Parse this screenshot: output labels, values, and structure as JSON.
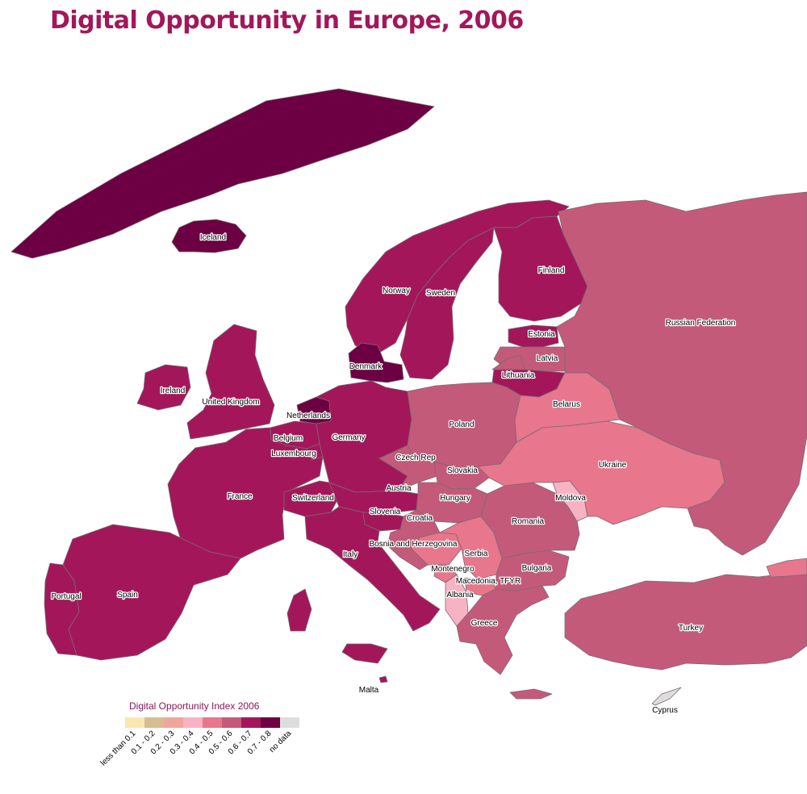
{
  "title": "Digital Opportunity in Europe, 2006",
  "legend": {
    "title": "Digital Opportunity Index 2006",
    "classes": [
      {
        "label": "less than 0.1",
        "color": "#fce7b2"
      },
      {
        "label": "0.1 - 0.2",
        "color": "#d7bd93"
      },
      {
        "label": "0.2 - 0.3",
        "color": "#f0a79b"
      },
      {
        "label": "0.3 - 0.4",
        "color": "#f7b3c3"
      },
      {
        "label": "0.4 - 0.5",
        "color": "#e8768c"
      },
      {
        "label": "0.5 - 0.6",
        "color": "#c45a79"
      },
      {
        "label": "0.6 - 0.7",
        "color": "#a3175a"
      },
      {
        "label": "0.7 - 0.8",
        "color": "#6c0042"
      },
      {
        "label": "no data",
        "color": "#dddddd"
      }
    ]
  },
  "countries": [
    {
      "name": "Greenland",
      "label": "",
      "class": "0.7 - 0.8"
    },
    {
      "name": "Iceland",
      "label": "Iceland",
      "class": "0.7 - 0.8"
    },
    {
      "name": "Norway",
      "label": "Norway",
      "class": "0.6 - 0.7"
    },
    {
      "name": "Sweden",
      "label": "Sweden",
      "class": "0.6 - 0.7"
    },
    {
      "name": "Finland",
      "label": "Finland",
      "class": "0.6 - 0.7"
    },
    {
      "name": "Estonia",
      "label": "Estonia",
      "class": "0.6 - 0.7"
    },
    {
      "name": "Latvia",
      "label": "Latvia",
      "class": "0.5 - 0.6"
    },
    {
      "name": "Lithuania",
      "label": "Lithuania",
      "class": "0.6 - 0.7"
    },
    {
      "name": "Denmark",
      "label": "Denmark",
      "class": "0.7 - 0.8"
    },
    {
      "name": "Ireland",
      "label": "Ireland",
      "class": "0.6 - 0.7"
    },
    {
      "name": "United Kingdom",
      "label": "United Kingdom",
      "class": "0.6 - 0.7"
    },
    {
      "name": "Netherlands",
      "label": "Netherlands",
      "class": "0.7 - 0.8"
    },
    {
      "name": "Belgium",
      "label": "Belgium",
      "class": "0.6 - 0.7"
    },
    {
      "name": "Luxembourg",
      "label": "Luxembourg",
      "class": "0.6 - 0.7"
    },
    {
      "name": "Germany",
      "label": "Germany",
      "class": "0.6 - 0.7"
    },
    {
      "name": "France",
      "label": "France",
      "class": "0.6 - 0.7"
    },
    {
      "name": "Switzerland",
      "label": "Switzerland",
      "class": "0.6 - 0.7"
    },
    {
      "name": "Austria",
      "label": "Austria",
      "class": "0.6 - 0.7"
    },
    {
      "name": "Slovenia",
      "label": "Slovenia",
      "class": "0.6 - 0.7"
    },
    {
      "name": "Italy",
      "label": "Italy",
      "class": "0.6 - 0.7"
    },
    {
      "name": "Malta",
      "label": "Malta",
      "class": "0.6 - 0.7"
    },
    {
      "name": "Spain",
      "label": "Spain",
      "class": "0.6 - 0.7"
    },
    {
      "name": "Portugal",
      "label": "Portugal",
      "class": "0.6 - 0.7"
    },
    {
      "name": "Poland",
      "label": "Poland",
      "class": "0.5 - 0.6"
    },
    {
      "name": "Czech Rep",
      "label": "Czech Rep",
      "class": "0.5 - 0.6"
    },
    {
      "name": "Slovakia",
      "label": "Slovakia",
      "class": "0.5 - 0.6"
    },
    {
      "name": "Hungary",
      "label": "Hungary",
      "class": "0.5 - 0.6"
    },
    {
      "name": "Croatia",
      "label": "Croatia",
      "class": "0.5 - 0.6"
    },
    {
      "name": "Bosnia and Herzegovina",
      "label": "Bosnia and Herzegovina",
      "class": "0.4 - 0.5"
    },
    {
      "name": "Serbia",
      "label": "Serbia",
      "class": "0.4 - 0.5"
    },
    {
      "name": "Montenegro",
      "label": "Montenegro",
      "class": "0.4 - 0.5"
    },
    {
      "name": "Macedonia, TFYR",
      "label": "Macedonia, TFYR",
      "class": "0.4 - 0.5"
    },
    {
      "name": "Albania",
      "label": "Albania",
      "class": "0.3 - 0.4"
    },
    {
      "name": "Greece",
      "label": "Greece",
      "class": "0.5 - 0.6"
    },
    {
      "name": "Bulgaria",
      "label": "Bulgaria",
      "class": "0.5 - 0.6"
    },
    {
      "name": "Romania",
      "label": "Romania",
      "class": "0.5 - 0.6"
    },
    {
      "name": "Moldova",
      "label": "Moldova",
      "class": "0.3 - 0.4"
    },
    {
      "name": "Ukraine",
      "label": "Ukraine",
      "class": "0.4 - 0.5"
    },
    {
      "name": "Belarus",
      "label": "Belarus",
      "class": "0.4 - 0.5"
    },
    {
      "name": "Russian Federation",
      "label": "Russian Federation",
      "class": "0.5 - 0.6"
    },
    {
      "name": "Turkey",
      "label": "Turkey",
      "class": "0.5 - 0.6"
    },
    {
      "name": "Cyprus",
      "label": "Cyprus",
      "class": "no data"
    },
    {
      "name": "Georgia",
      "label": "",
      "class": "0.4 - 0.5"
    }
  ]
}
